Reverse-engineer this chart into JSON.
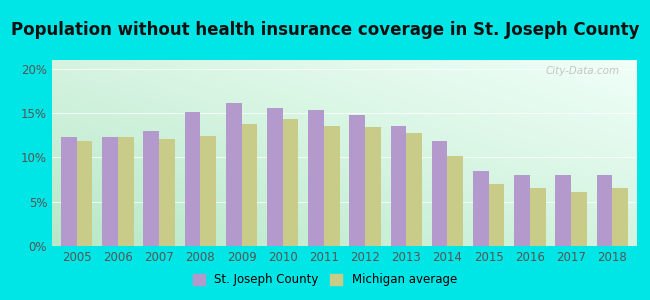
{
  "title": "Population without health insurance coverage in St. Joseph County",
  "years": [
    2005,
    2006,
    2007,
    2008,
    2009,
    2010,
    2011,
    2012,
    2013,
    2014,
    2015,
    2016,
    2017,
    2018
  ],
  "st_joseph": [
    12.3,
    12.3,
    13.0,
    15.1,
    16.2,
    15.6,
    15.3,
    14.8,
    13.5,
    11.8,
    8.5,
    8.0,
    8.0,
    8.0
  ],
  "michigan": [
    11.8,
    12.3,
    12.1,
    12.4,
    13.8,
    14.3,
    13.5,
    13.4,
    12.8,
    10.2,
    7.0,
    6.5,
    6.1,
    6.5
  ],
  "bar_color_sj": "#b399cc",
  "bar_color_mi": "#c8cc88",
  "background_outer": "#00e5e5",
  "ylim": [
    0,
    21
  ],
  "yticks": [
    0,
    5,
    10,
    15,
    20
  ],
  "ytick_labels": [
    "0%",
    "5%",
    "10%",
    "15%",
    "20%"
  ],
  "legend_sj": "St. Joseph County",
  "legend_mi": "Michigan average",
  "watermark": "City-Data.com",
  "title_fontsize": 12,
  "tick_fontsize": 8.5,
  "grad_color_bottom_left": "#b8e8c8",
  "grad_color_top_right": "#f0fff8"
}
